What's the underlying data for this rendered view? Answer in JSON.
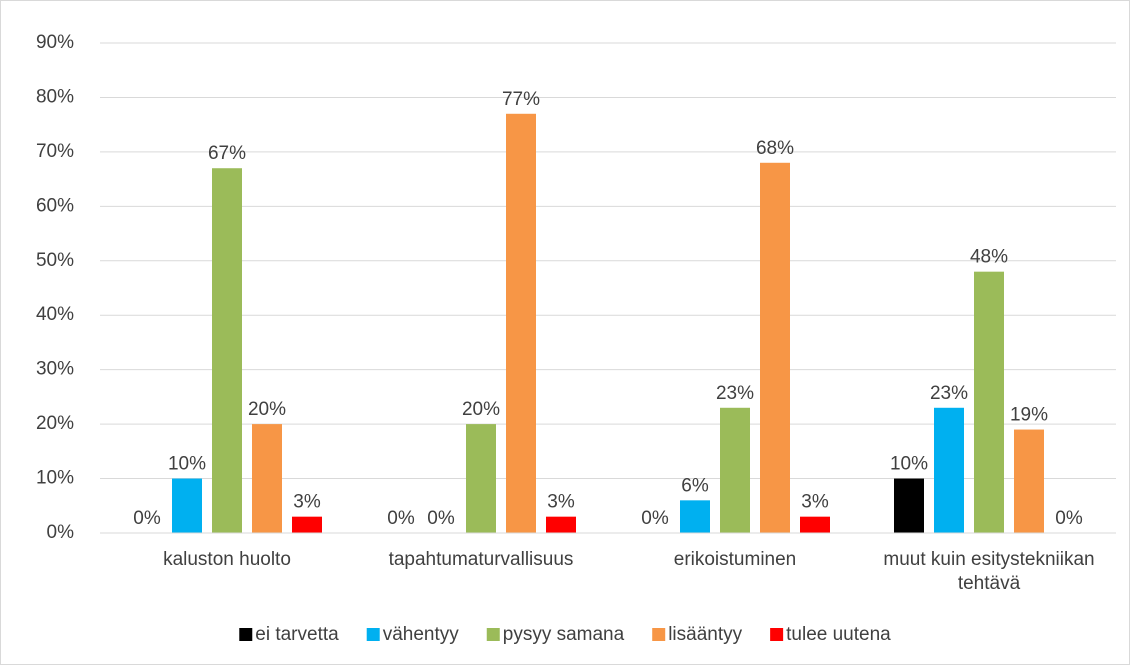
{
  "chart_data": {
    "type": "bar",
    "categories": [
      "kaluston huolto",
      "tapahtumaturvallisuus",
      "erikoistuminen",
      "muut kuin esitystekniikan tehtävä"
    ],
    "series": [
      {
        "name": "ei tarvetta",
        "color": "#000000",
        "values": [
          0,
          0,
          0,
          10
        ],
        "value_labels": [
          "0%",
          "0%",
          "0%",
          "10%"
        ]
      },
      {
        "name": "vähentyy",
        "color": "#00b0f0",
        "values": [
          10,
          0,
          6,
          23
        ],
        "value_labels": [
          "10%",
          "0%",
          "6%",
          "23%"
        ]
      },
      {
        "name": "pysyy samana",
        "color": "#9bbb59",
        "values": [
          67,
          20,
          23,
          48
        ],
        "value_labels": [
          "67%",
          "20%",
          "23%",
          "48%"
        ]
      },
      {
        "name": "lisääntyy",
        "color": "#f79646",
        "values": [
          20,
          77,
          68,
          19
        ],
        "value_labels": [
          "20%",
          "77%",
          "68%",
          "19%"
        ]
      },
      {
        "name": "tulee uutena",
        "color": "#ff0000",
        "values": [
          3,
          3,
          3,
          0
        ],
        "value_labels": [
          "3%",
          "3%",
          "3%",
          "0%"
        ]
      }
    ],
    "ylim": [
      0,
      90
    ],
    "yticks": [
      {
        "value": 0,
        "label": "0%"
      },
      {
        "value": 10,
        "label": "10%"
      },
      {
        "value": 20,
        "label": "20%"
      },
      {
        "value": 30,
        "label": "30%"
      },
      {
        "value": 40,
        "label": "40%"
      },
      {
        "value": 50,
        "label": "50%"
      },
      {
        "value": 60,
        "label": "60%"
      },
      {
        "value": 70,
        "label": "70%"
      },
      {
        "value": 80,
        "label": "80%"
      },
      {
        "value": 90,
        "label": "90%"
      }
    ],
    "grid": true,
    "legend": "bottom"
  }
}
